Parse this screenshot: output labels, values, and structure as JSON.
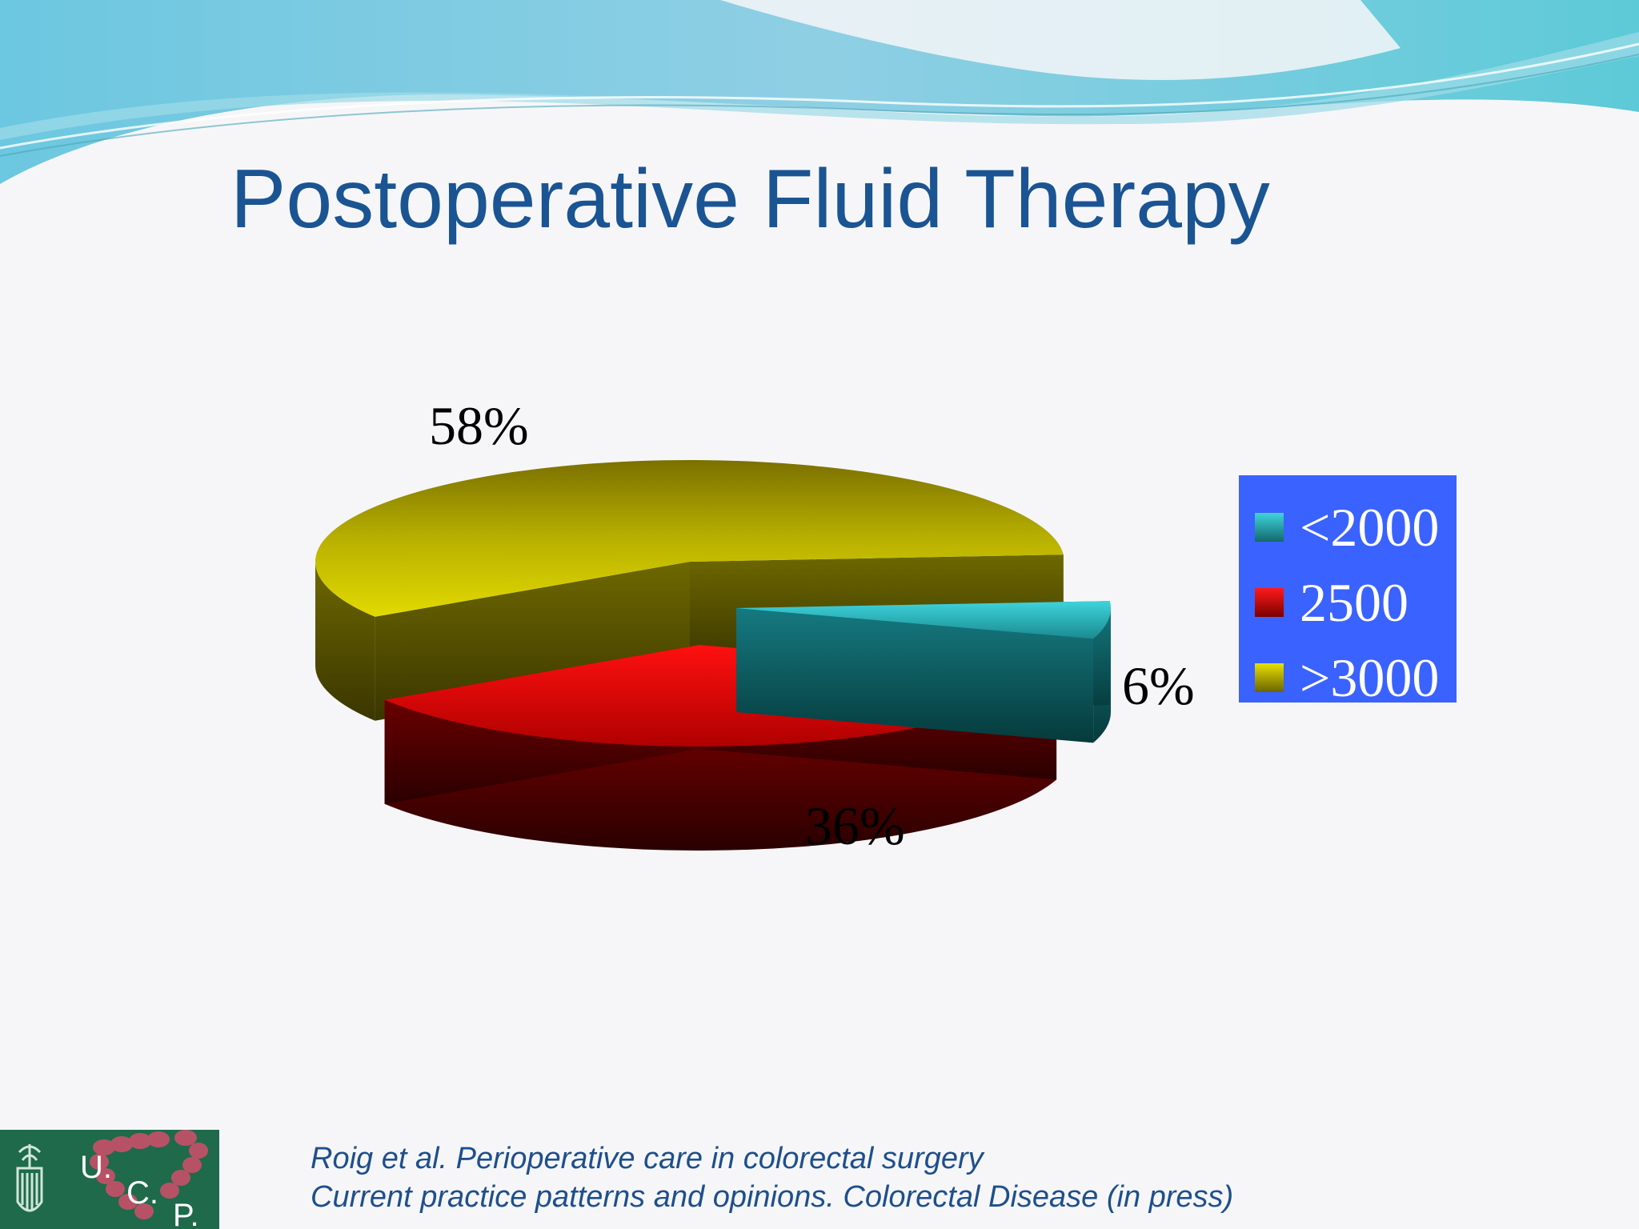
{
  "slide": {
    "title": "Postoperative Fluid Therapy"
  },
  "chart_data": {
    "type": "pie",
    "title": "",
    "categories": [
      "<2000",
      "2500",
      ">3000"
    ],
    "values": [
      6,
      36,
      58
    ],
    "labels": [
      "6%",
      "36%",
      "58%"
    ],
    "colors": [
      "#2cc4cc",
      "#e80000",
      "#d4cc00"
    ],
    "legend_position": "right",
    "style": "3d-exploded"
  },
  "legend": {
    "items": [
      {
        "label": "<2000",
        "color": "#2cc4cc"
      },
      {
        "label": "2500",
        "color": "#e80000"
      },
      {
        "label": ">3000",
        "color": "#d4cc00"
      }
    ]
  },
  "citation": {
    "line1": "Roig et al. Perioperative care in colorectal surgery",
    "line2": "Current practice patterns and opinions.  Colorectal Disease (in press)"
  },
  "logo": {
    "letter_u": "U.",
    "letter_c": "C.",
    "letter_p": "P."
  }
}
